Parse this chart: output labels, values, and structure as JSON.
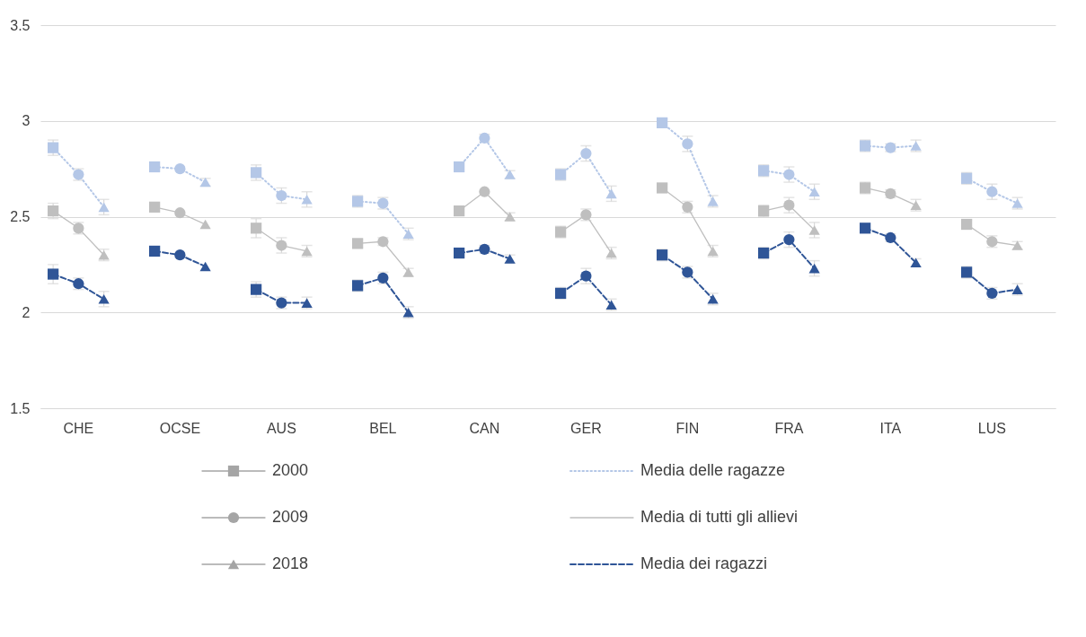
{
  "chart_data": {
    "type": "line",
    "categories": [
      null,
      "CHE",
      null,
      null,
      null,
      "OCSE",
      null,
      null,
      null,
      "AUS",
      null,
      null,
      null,
      "BEL",
      null,
      null,
      null,
      "CAN",
      null,
      null,
      null,
      "GER",
      null,
      null,
      null,
      "FIN",
      null,
      null,
      null,
      "FRA",
      null,
      null,
      null,
      "ITA",
      null,
      null,
      null,
      "LUS",
      null,
      null
    ],
    "ylim": [
      1.5,
      3.5
    ],
    "yticks": [
      1.5,
      2,
      2.5,
      3,
      3.5
    ],
    "grid": "y",
    "legend": "bottom",
    "marker": [
      "square",
      "circle",
      "triangle"
    ],
    "series": [
      {
        "name": "Media delle ragazze",
        "color": "#b4c7e7",
        "line_style": "dotted",
        "values": [
          2.86,
          2.72,
          2.55,
          null,
          2.76,
          2.75,
          2.68,
          null,
          2.73,
          2.61,
          2.59,
          null,
          2.58,
          2.57,
          2.41,
          null,
          2.76,
          2.91,
          2.72,
          null,
          2.72,
          2.83,
          2.62,
          null,
          2.99,
          2.88,
          2.58,
          null,
          2.74,
          2.72,
          2.63,
          null,
          2.87,
          2.86,
          2.87,
          null,
          2.7,
          2.63,
          2.57,
          null
        ],
        "errors": [
          0.04,
          0.03,
          0.04,
          null,
          null,
          null,
          0.02,
          null,
          0.04,
          0.04,
          0.04,
          null,
          0.03,
          0.03,
          0.03,
          null,
          null,
          0.02,
          0.02,
          null,
          0.03,
          0.04,
          0.04,
          null,
          0.02,
          0.04,
          0.03,
          null,
          0.03,
          0.04,
          0.04,
          null,
          0.03,
          0.02,
          0.03,
          null,
          0.03,
          0.04,
          0.03,
          null
        ]
      },
      {
        "name": "Media di tutti gli allievi",
        "color": "#bfbfbf",
        "line_style": "solid",
        "values": [
          2.53,
          2.44,
          2.3,
          null,
          2.55,
          2.52,
          2.46,
          null,
          2.44,
          2.35,
          2.32,
          null,
          2.36,
          2.37,
          2.21,
          null,
          2.53,
          2.63,
          2.5,
          null,
          2.42,
          2.51,
          2.31,
          null,
          2.65,
          2.55,
          2.32,
          null,
          2.53,
          2.56,
          2.43,
          null,
          2.65,
          2.62,
          2.56,
          null,
          2.46,
          2.37,
          2.35,
          null
        ],
        "errors": [
          0.04,
          0.03,
          0.03,
          null,
          null,
          null,
          null,
          null,
          0.05,
          0.04,
          0.03,
          null,
          0.02,
          0.02,
          0.02,
          null,
          null,
          null,
          0.02,
          null,
          0.03,
          0.03,
          0.03,
          null,
          0.02,
          0.03,
          0.03,
          null,
          0.03,
          0.04,
          0.04,
          null,
          0.03,
          0.02,
          0.03,
          null,
          0.02,
          0.03,
          0.02,
          null
        ]
      },
      {
        "name": "Media dei ragazzi",
        "color": "#2f5597",
        "line_style": "dashed",
        "values": [
          2.2,
          2.15,
          2.07,
          null,
          2.32,
          2.3,
          2.24,
          null,
          2.12,
          2.05,
          2.05,
          null,
          2.14,
          2.18,
          2.0,
          null,
          2.31,
          2.33,
          2.28,
          null,
          2.1,
          2.19,
          2.04,
          null,
          2.3,
          2.21,
          2.07,
          null,
          2.31,
          2.38,
          2.23,
          null,
          2.44,
          2.39,
          2.26,
          null,
          2.21,
          2.1,
          2.12,
          null
        ],
        "errors": [
          0.05,
          0.03,
          0.04,
          null,
          null,
          null,
          null,
          null,
          0.04,
          0.03,
          0.03,
          null,
          0.03,
          0.03,
          0.03,
          null,
          null,
          0.02,
          0.02,
          null,
          0.03,
          0.04,
          0.03,
          null,
          0.03,
          0.03,
          0.03,
          null,
          0.03,
          0.04,
          0.04,
          null,
          null,
          0.02,
          0.02,
          null,
          0.03,
          0.03,
          0.03,
          null
        ]
      },
      {
        "name": "2000",
        "color": "#a5a5a5",
        "type": "line",
        "marker": "square",
        "line_style": "solid",
        "values": [
          null,
          null,
          null,
          null,
          null,
          null,
          null,
          null,
          null,
          null,
          null,
          null,
          null,
          null,
          null,
          null,
          null,
          null,
          null,
          null,
          null,
          null,
          null,
          null,
          null,
          null,
          null,
          null,
          null,
          null,
          null,
          null,
          null,
          null,
          null,
          null,
          null,
          null,
          null,
          null
        ]
      },
      {
        "name": "2009",
        "color": "#a5a5a5",
        "type": "line",
        "marker": "circle",
        "line_style": "solid",
        "values": [
          null,
          null,
          null,
          null,
          null,
          null,
          null,
          null,
          null,
          null,
          null,
          null,
          null,
          null,
          null,
          null,
          null,
          null,
          null,
          null,
          null,
          null,
          null,
          null,
          null,
          null,
          null,
          null,
          null,
          null,
          null,
          null,
          null,
          null,
          null,
          null,
          null,
          null,
          null,
          null
        ]
      },
      {
        "name": "2018",
        "color": "#a5a5a5",
        "type": "line",
        "marker": "triangle",
        "line_style": "solid",
        "values": [
          null,
          null,
          null,
          null,
          null,
          null,
          null,
          null,
          null,
          null,
          null,
          null,
          null,
          null,
          null,
          null,
          null,
          null,
          null,
          null,
          null,
          null,
          null,
          null,
          null,
          null,
          null,
          null,
          null,
          null,
          null,
          null,
          null,
          null,
          null,
          null,
          null,
          null,
          null,
          null
        ]
      }
    ]
  }
}
